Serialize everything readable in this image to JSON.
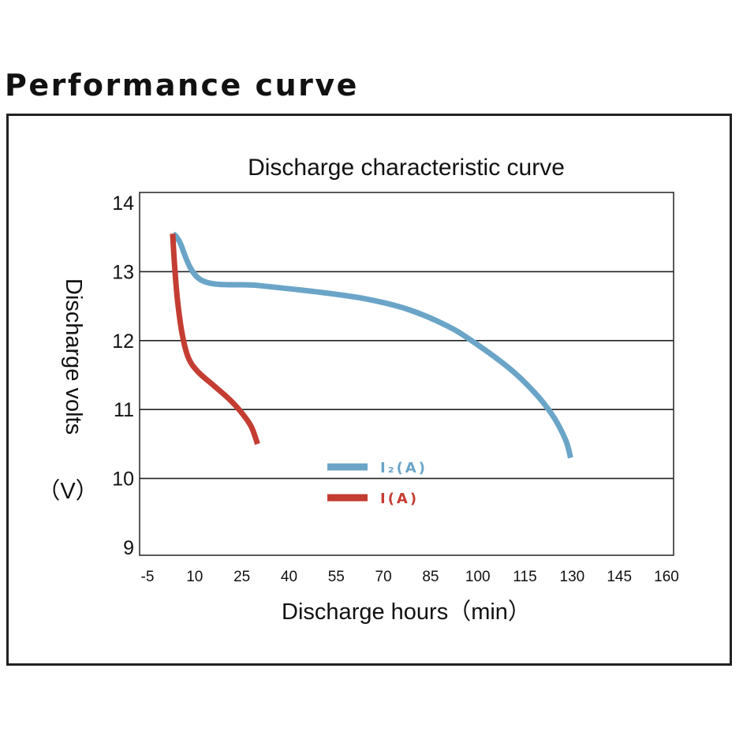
{
  "heading": "Performance curve",
  "chart_data": {
    "type": "line",
    "title": "Discharge characteristic curve",
    "xlabel": "Discharge hours（min）",
    "ylabel": "Discharge volts",
    "ylabel_unit": "（V）",
    "x_ticks": [
      "-5",
      "10",
      "25",
      "40",
      "55",
      "70",
      "85",
      "100",
      "115",
      "130",
      "145",
      "160"
    ],
    "y_ticks": [
      "14",
      "13",
      "12",
      "11",
      "10",
      "9"
    ],
    "xlim": [
      -5,
      160
    ],
    "ylim": [
      9,
      14
    ],
    "grid": "horizontal",
    "legend_position": "center",
    "series": [
      {
        "name": "I₂(A)",
        "color": "#6aa5c8",
        "points": [
          [
            3,
            13.55
          ],
          [
            5,
            13.45
          ],
          [
            12,
            12.88
          ],
          [
            30,
            12.8
          ],
          [
            50,
            12.7
          ],
          [
            65,
            12.6
          ],
          [
            78,
            12.45
          ],
          [
            90,
            12.22
          ],
          [
            98,
            12.0
          ],
          [
            110,
            11.6
          ],
          [
            118,
            11.25
          ],
          [
            124,
            10.9
          ],
          [
            128,
            10.55
          ],
          [
            129.5,
            10.3
          ]
        ]
      },
      {
        "name": "I(A)",
        "color": "#c43d33",
        "points": [
          [
            3,
            13.55
          ],
          [
            3.6,
            13.1
          ],
          [
            4.5,
            12.6
          ],
          [
            6,
            12.1
          ],
          [
            8,
            11.75
          ],
          [
            11,
            11.55
          ],
          [
            16,
            11.35
          ],
          [
            21,
            11.15
          ],
          [
            25,
            10.95
          ],
          [
            28,
            10.75
          ],
          [
            30,
            10.5
          ]
        ]
      }
    ]
  }
}
